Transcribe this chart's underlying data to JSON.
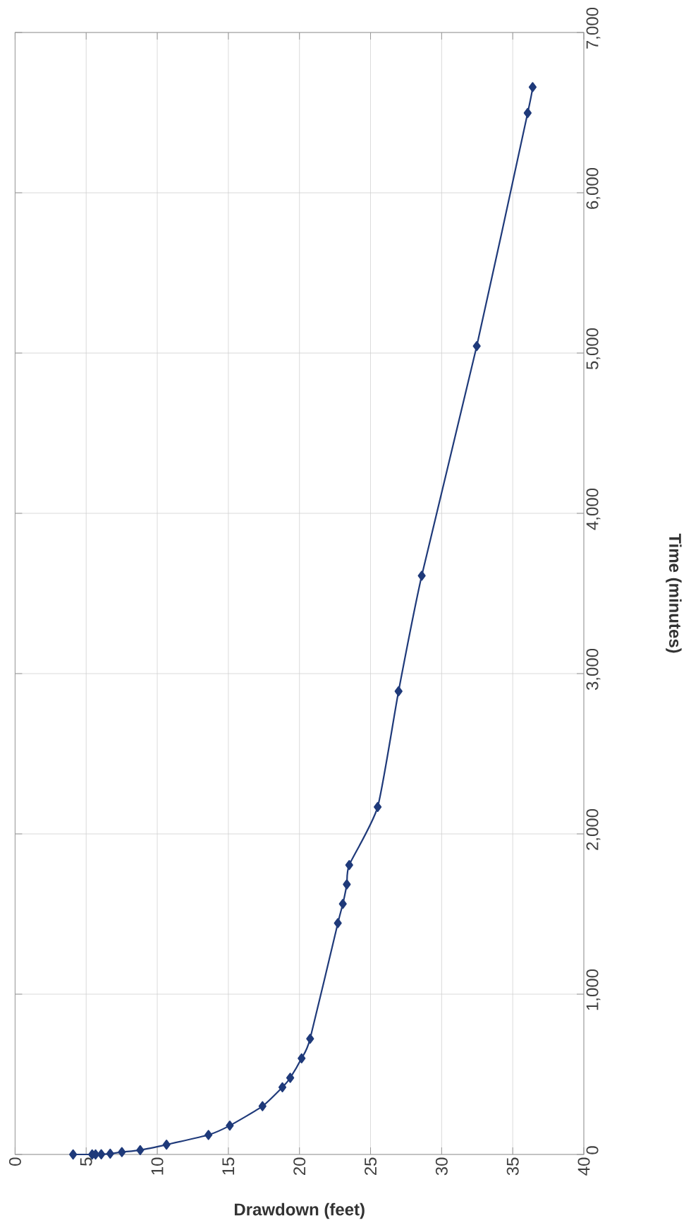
{
  "chart_data": {
    "type": "line",
    "xlabel": "Drawdown (feet)",
    "ylabel": "Time (minutes)",
    "x": [
      4.08,
      5.42,
      5.66,
      6.06,
      6.69,
      7.51,
      8.8,
      10.65,
      13.6,
      15.1,
      17.4,
      18.8,
      19.35,
      20.15,
      20.75,
      22.7,
      23.05,
      23.33,
      23.5,
      25.5,
      26.97,
      28.6,
      32.47,
      36.05,
      36.4
    ],
    "series": [
      {
        "color": "#1f3a7a",
        "values": [
          0,
          0,
          0,
          1,
          5,
          15,
          27,
          61,
          122,
          180,
          301,
          419,
          478,
          600,
          722,
          1443,
          1563,
          1685,
          1806,
          2168,
          2890,
          3611,
          5044,
          6498,
          6659
        ]
      }
    ],
    "xlim": [
      0,
      40
    ],
    "ylim": [
      0,
      7000
    ],
    "xticks": [
      0,
      5,
      10,
      15,
      20,
      25,
      30,
      35,
      40
    ],
    "yticks": [
      0,
      {
        "value": 1000,
        "label": "1,000"
      },
      {
        "value": 2000,
        "label": "2,000"
      },
      {
        "value": 3000,
        "label": "3,000"
      },
      {
        "value": 4000,
        "label": "4,000"
      },
      {
        "value": 5000,
        "label": "5,000"
      },
      {
        "value": 6000,
        "label": "6,000"
      },
      {
        "value": 7000,
        "label": "7,000"
      }
    ],
    "grid": true,
    "marker": "diamond",
    "line_style": "solid"
  }
}
